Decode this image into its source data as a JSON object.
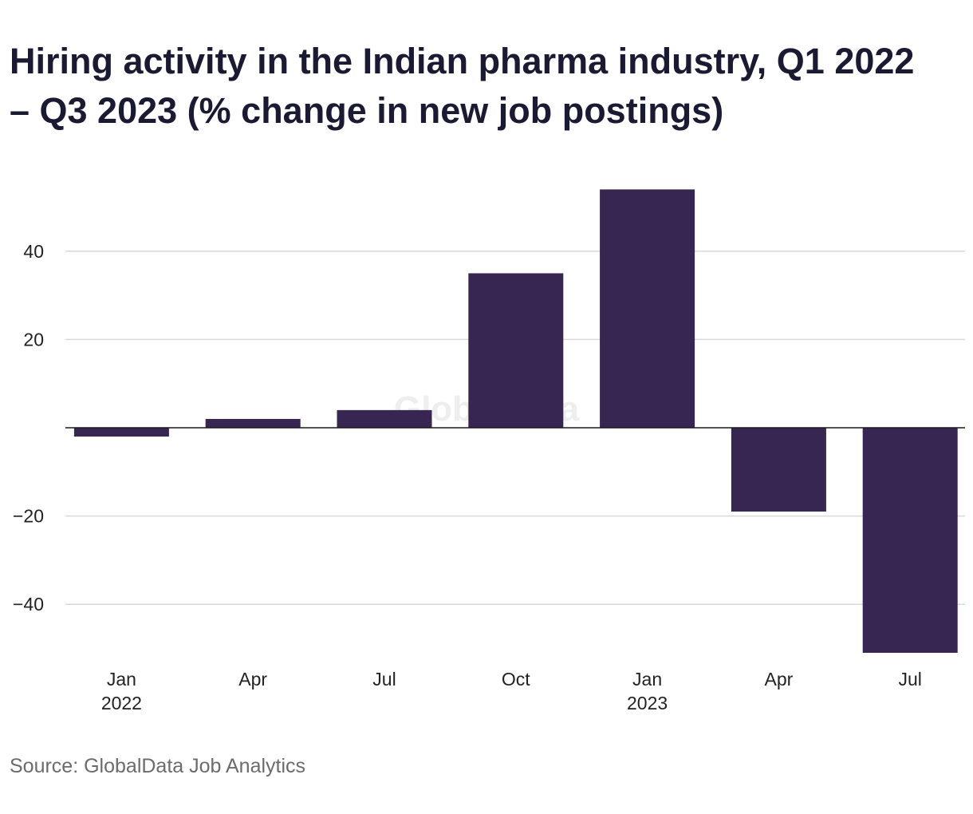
{
  "title": "Hiring activity in the Indian pharma industry, Q1 2022 – Q3 2023 (% change in new job postings)",
  "source": "Source: GlobalData Job Analytics",
  "watermark": "GlobalData",
  "colors": {
    "bar": "#372552",
    "grid": "#d9d9d9",
    "zero_line": "#1a1a1a",
    "text": "#1a1a33",
    "source_text": "#6b6b6b"
  },
  "chart_data": {
    "type": "bar",
    "categories": [
      {
        "line1": "Jan",
        "line2": "2022"
      },
      {
        "line1": "Apr",
        "line2": ""
      },
      {
        "line1": "Jul",
        "line2": ""
      },
      {
        "line1": "Oct",
        "line2": ""
      },
      {
        "line1": "Jan",
        "line2": "2023"
      },
      {
        "line1": "Apr",
        "line2": ""
      },
      {
        "line1": "Jul",
        "line2": ""
      }
    ],
    "values": [
      -2,
      2,
      4,
      35,
      54,
      -19,
      -51
    ],
    "ylim": [
      -51,
      54
    ],
    "yticks": [
      40,
      20,
      -20,
      -40
    ],
    "ytick_labels": [
      "40",
      "20",
      "−20",
      "−40"
    ],
    "grid": true,
    "xlabel": "",
    "ylabel": ""
  }
}
